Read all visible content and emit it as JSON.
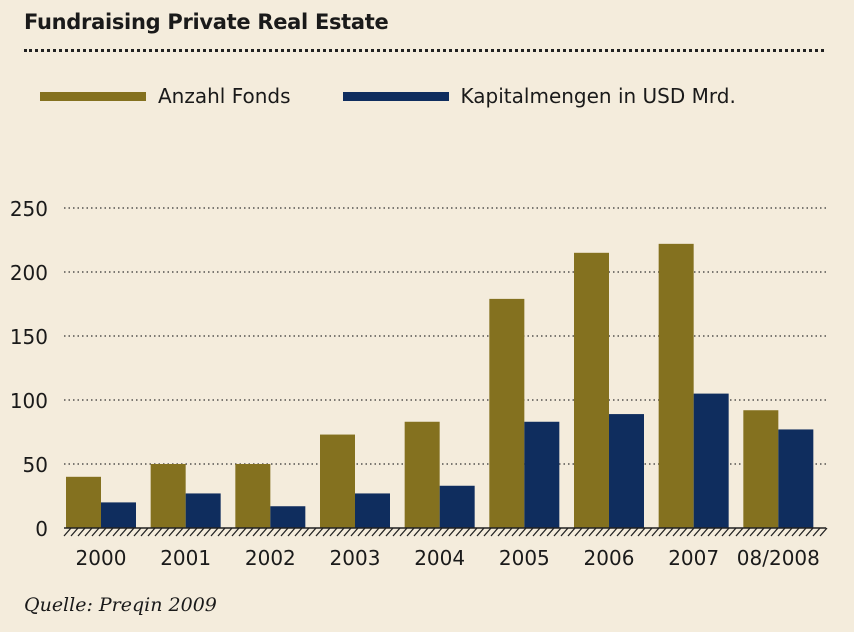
{
  "title": "Fundraising Private Real Estate",
  "source": "Quelle: Preqin 2009",
  "chart_data": {
    "type": "bar",
    "title": "Fundraising Private Real Estate",
    "categories": [
      "2000",
      "2001",
      "2002",
      "2003",
      "2004",
      "2005",
      "2006",
      "2007",
      "08/2008"
    ],
    "series": [
      {
        "name": "Anzahl Fonds",
        "color": "#84711f",
        "values": [
          40,
          50,
          50,
          73,
          83,
          179,
          215,
          222,
          92
        ]
      },
      {
        "name": "Kapitalmengen in USD Mrd.",
        "color": "#0f2d5e",
        "values": [
          20,
          27,
          17,
          27,
          33,
          83,
          89,
          105,
          77
        ]
      }
    ],
    "ylim": [
      0,
      250
    ],
    "yticks": [
      0,
      50,
      100,
      150,
      200,
      250
    ],
    "grid": "horizontal-dotted",
    "legend_position": "top-left"
  }
}
